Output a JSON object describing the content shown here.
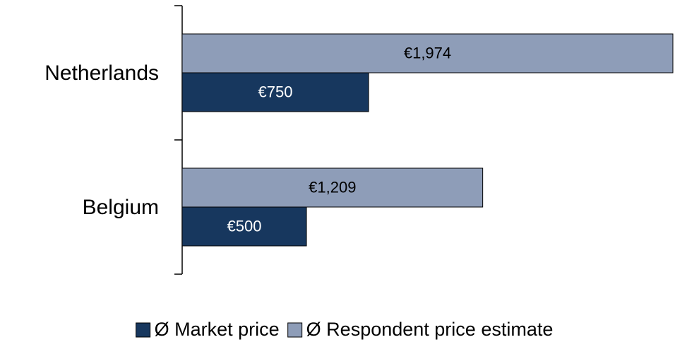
{
  "chart_data": {
    "type": "bar",
    "orientation": "horizontal",
    "categories": [
      "Netherlands",
      "Belgium"
    ],
    "series": [
      {
        "name": "Ø Market price",
        "color": "#17375e",
        "values": [
          750,
          500
        ],
        "value_labels": [
          "€750",
          "€500"
        ]
      },
      {
        "name": "Ø Respondent price estimate",
        "color": "#8e9db8",
        "values": [
          1974,
          1209
        ],
        "value_labels": [
          "€1,974",
          "€1,209"
        ]
      }
    ],
    "legend": "bottom"
  }
}
